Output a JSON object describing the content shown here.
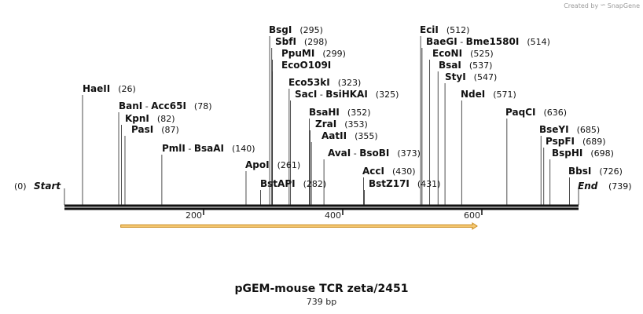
{
  "header": {
    "created_by": "Created by",
    "brand": "SnapGene",
    "brand_icon": "snapgene-logo-icon"
  },
  "plasmid": {
    "name": "pGEM-mouse TCR zeta/2451",
    "length_label": "739 bp",
    "length": 739,
    "ruler_ticks": [
      200,
      400,
      600
    ],
    "feature": {
      "start": 90,
      "end": 600,
      "direction": "forward",
      "fill": "#f5c873",
      "stroke": "#c98a1a"
    }
  },
  "ends": {
    "start": {
      "label": "Start",
      "pos_label": "(0)"
    },
    "end": {
      "label": "End",
      "pos_label": "(739)"
    }
  },
  "sites": [
    {
      "name": "HaeII",
      "pos": 26,
      "pos_label": "(26)"
    },
    {
      "name": "BanI",
      "alt": "Acc65I",
      "pos": 78,
      "pos_label": "(78)"
    },
    {
      "name": "KpnI",
      "pos": 82,
      "pos_label": "(82)"
    },
    {
      "name": "PasI",
      "pos": 87,
      "pos_label": "(87)"
    },
    {
      "name": "PmlI",
      "alt": "BsaAI",
      "pos": 140,
      "pos_label": "(140)"
    },
    {
      "name": "ApoI",
      "pos": 261,
      "pos_label": "(261)"
    },
    {
      "name": "BstAPI",
      "pos": 282,
      "pos_label": "(282)"
    },
    {
      "name": "BsgI",
      "pos": 295,
      "pos_label": "(295)"
    },
    {
      "name": "SbfI",
      "pos": 298,
      "pos_label": "(298)"
    },
    {
      "name": "PpuMI",
      "pos": 299,
      "pos_label": "(299)"
    },
    {
      "name": "EcoO109I",
      "pos": 299,
      "pos_label": ""
    },
    {
      "name": "Eco53kI",
      "pos": 323,
      "pos_label": "(323)"
    },
    {
      "name": "SacI",
      "alt": "BsiHKAI",
      "pos": 325,
      "pos_label": "(325)"
    },
    {
      "name": "BsaHI",
      "pos": 352,
      "pos_label": "(352)"
    },
    {
      "name": "ZraI",
      "pos": 353,
      "pos_label": "(353)"
    },
    {
      "name": "AatII",
      "pos": 355,
      "pos_label": "(355)"
    },
    {
      "name": "AvaI",
      "alt": "BsoBI",
      "pos": 373,
      "pos_label": "(373)"
    },
    {
      "name": "AccI",
      "pos": 430,
      "pos_label": "(430)"
    },
    {
      "name": "BstZ17I",
      "pos": 431,
      "pos_label": "(431)"
    },
    {
      "name": "EciI",
      "pos": 512,
      "pos_label": "(512)"
    },
    {
      "name": "BaeGI",
      "alt": "Bme1580I",
      "pos": 514,
      "pos_label": "(514)"
    },
    {
      "name": "EcoNI",
      "pos": 525,
      "pos_label": "(525)"
    },
    {
      "name": "BsaI",
      "pos": 537,
      "pos_label": "(537)"
    },
    {
      "name": "StyI",
      "pos": 547,
      "pos_label": "(547)"
    },
    {
      "name": "NdeI",
      "pos": 571,
      "pos_label": "(571)"
    },
    {
      "name": "PaqCI",
      "pos": 636,
      "pos_label": "(636)"
    },
    {
      "name": "BseYI",
      "pos": 685,
      "pos_label": "(685)"
    },
    {
      "name": "PspFI",
      "pos": 689,
      "pos_label": "(689)"
    },
    {
      "name": "BspHI",
      "pos": 698,
      "pos_label": "(698)"
    },
    {
      "name": "BbsI",
      "pos": 726,
      "pos_label": "(726)"
    }
  ]
}
